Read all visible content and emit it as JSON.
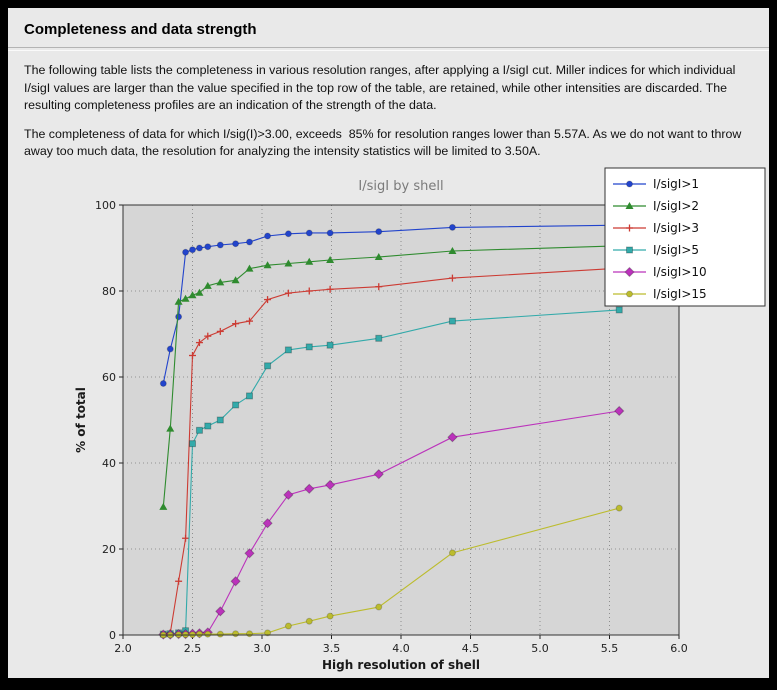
{
  "page": {
    "title": "Completeness and data strength",
    "paragraph1": "The following table lists the completeness in various resolution ranges, after applying a I/sigI cut. Miller indices for which individual I/sigI values are larger than the value specified in the top row of the table, are retained, while other intensities are discarded. The resulting completeness profiles are an indication of the strength of the data.",
    "paragraph2": "The completeness of data for which I/sig(I)>3.00, exceeds  85% for resolution ranges lower than 5.57A. As we do not want to throw away too much data, the resolution for analyzing the intensity statistics will be limited to 3.50A."
  },
  "chart_data": {
    "type": "line",
    "title": "I/sigI by shell",
    "xlabel": "High resolution of shell",
    "ylabel": "% of total",
    "xlim": [
      2.0,
      6.0
    ],
    "ylim": [
      0,
      100
    ],
    "xticks": [
      2.0,
      2.5,
      3.0,
      3.5,
      4.0,
      4.5,
      5.0,
      5.5,
      6.0
    ],
    "yticks": [
      0,
      20,
      40,
      60,
      80,
      100
    ],
    "grid": true,
    "legend_position": "top-right",
    "x": [
      2.29,
      2.34,
      2.4,
      2.45,
      2.5,
      2.55,
      2.61,
      2.7,
      2.81,
      2.91,
      3.04,
      3.19,
      3.34,
      3.49,
      3.84,
      4.37,
      5.57
    ],
    "series": [
      {
        "name": "I/sigI>1",
        "color": "#2244cc",
        "marker": "circle",
        "values": [
          58.5,
          66.5,
          74.0,
          89.0,
          89.6,
          90.0,
          90.3,
          90.7,
          91.0,
          91.4,
          92.8,
          93.3,
          93.5,
          93.5,
          93.8,
          94.8,
          95.3
        ]
      },
      {
        "name": "I/sigI>2",
        "color": "#2f8b2f",
        "marker": "triangle",
        "values": [
          29.8,
          48.0,
          77.5,
          78.2,
          79.0,
          79.6,
          81.2,
          82.0,
          82.5,
          85.2,
          86.0,
          86.4,
          86.8,
          87.2,
          87.9,
          89.3,
          90.5
        ]
      },
      {
        "name": "I/sigI>3",
        "color": "#cc3b33",
        "marker": "plus",
        "values": [
          0.2,
          0.5,
          12.5,
          22.5,
          65.0,
          68.0,
          69.5,
          70.6,
          72.4,
          73.0,
          78.0,
          79.5,
          80.0,
          80.4,
          81.0,
          83.0,
          85.3
        ]
      },
      {
        "name": "I/sigI>5",
        "color": "#33aaaa",
        "marker": "square",
        "values": [
          0.2,
          0.3,
          0.5,
          1.0,
          44.5,
          47.6,
          48.6,
          50.0,
          53.5,
          55.6,
          62.6,
          66.3,
          67.0,
          67.4,
          69.0,
          73.0,
          75.6
        ]
      },
      {
        "name": "I/sigI>10",
        "color": "#bb33bb",
        "marker": "diamond",
        "values": [
          0.1,
          0.1,
          0.2,
          0.2,
          0.3,
          0.4,
          0.6,
          5.5,
          12.5,
          19.0,
          26.0,
          32.6,
          34.0,
          34.9,
          37.4,
          46.0,
          52.1
        ]
      },
      {
        "name": "I/sigI>15",
        "color": "#bcbc2e",
        "marker": "circle",
        "values": [
          0.0,
          0.0,
          0.1,
          0.1,
          0.1,
          0.2,
          0.2,
          0.2,
          0.3,
          0.3,
          0.5,
          2.1,
          3.2,
          4.4,
          6.5,
          19.1,
          29.5
        ]
      }
    ]
  }
}
